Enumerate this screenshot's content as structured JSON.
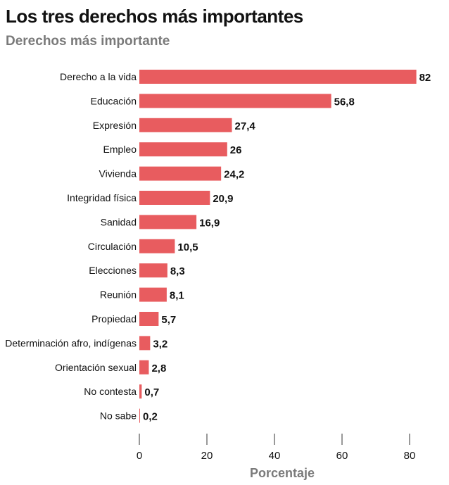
{
  "header": {
    "title": "Los tres derechos más importantes",
    "subtitle": "Derechos más importante"
  },
  "colors": {
    "bar": "#e85c5f",
    "text": "#111111",
    "axis_label": "#7a7a7a"
  },
  "chart_data": {
    "type": "bar",
    "orientation": "horizontal",
    "title": "Los tres derechos más importantes",
    "subtitle": "Derechos más importante",
    "xlabel": "Porcentaje",
    "ylabel": "",
    "xlim": [
      0,
      85
    ],
    "xticks": [
      0,
      20,
      40,
      60,
      80
    ],
    "grid": false,
    "categories": [
      "Derecho a la vida",
      "Educación",
      "Expresión",
      "Empleo",
      "Vivienda",
      "Integridad física",
      "Sanidad",
      "Circulación",
      "Elecciones",
      "Reunión",
      "Propiedad",
      "Determinación afro, indígenas",
      "Orientación sexual",
      "No contesta",
      "No sabe"
    ],
    "values": [
      82,
      56.8,
      27.4,
      26,
      24.2,
      20.9,
      16.9,
      10.5,
      8.3,
      8.1,
      5.7,
      3.2,
      2.8,
      0.7,
      0.2
    ],
    "value_labels": [
      "82",
      "56,8",
      "27,4",
      "26",
      "24,2",
      "20,9",
      "16,9",
      "10,5",
      "8,3",
      "8,1",
      "5,7",
      "3,2",
      "2,8",
      "0,7",
      "0,2"
    ]
  }
}
